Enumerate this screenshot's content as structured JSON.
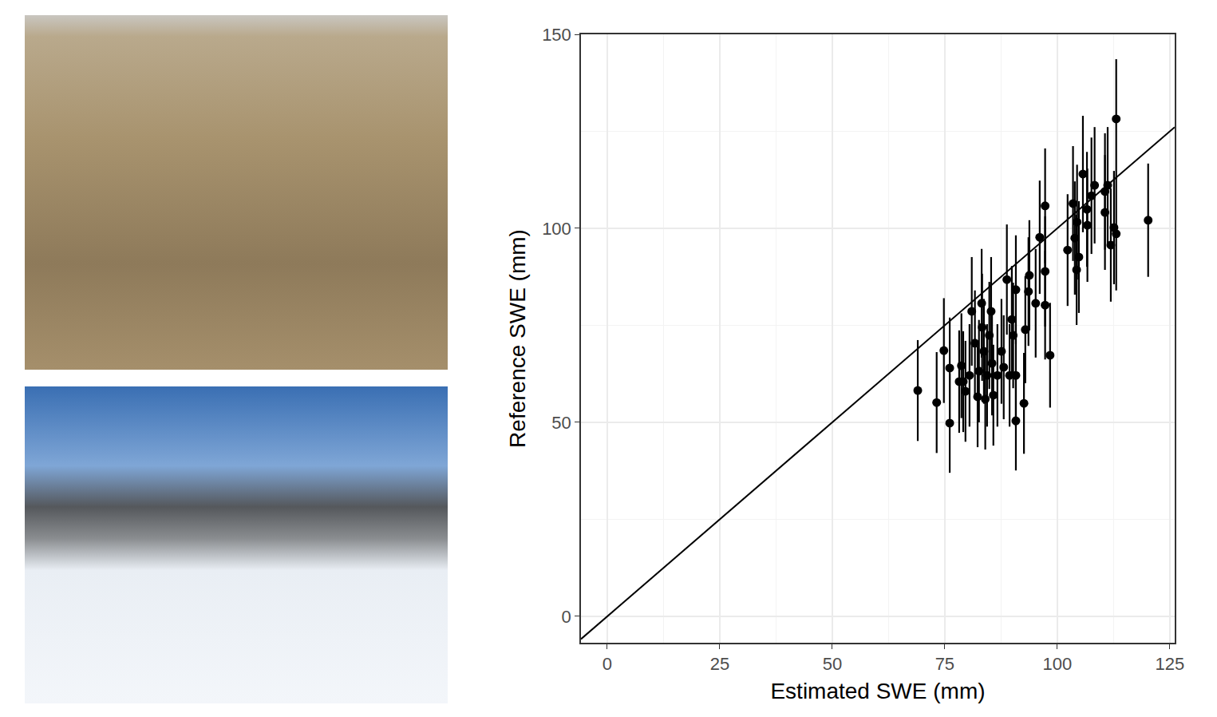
{
  "chart_data": {
    "type": "scatter",
    "x_label": "Estimated SWE (mm)",
    "y_label": "Reference SWE (mm)",
    "xlim": [
      -5.85,
      126.1
    ],
    "ylim": [
      -6.8,
      150
    ],
    "xticks": [
      0,
      25,
      50,
      75,
      100,
      125
    ],
    "yticks": [
      0,
      50,
      100,
      150
    ],
    "grid": true,
    "series": [
      {
        "type": "scatter",
        "marker": "circle",
        "color": "#000000",
        "x": [
          69.0,
          73.2,
          74.8,
          76.1,
          76.1,
          78.2,
          78.7,
          79.1,
          79.6,
          80.5,
          81.0,
          81.7,
          82.3,
          82.6,
          83.2,
          83.3,
          83.7,
          84.0,
          84.4,
          84.9,
          85.3,
          85.5,
          85.8,
          86.7,
          87.6,
          88.1,
          88.8,
          89.4,
          89.9,
          90.2,
          90.8,
          90.8,
          90.8,
          92.6,
          92.9,
          93.6,
          93.8,
          95.2,
          96.1,
          97.3,
          97.3,
          97.3,
          98.4,
          102.3,
          103.5,
          103.9,
          104.3,
          104.4,
          104.8,
          105.7,
          106.6,
          106.7,
          107.6,
          108.3,
          110.6,
          110.6,
          111.2,
          111.9,
          112.6,
          113.1,
          113.1,
          120.2
        ],
        "values": [
          58.2,
          55.1,
          68.5,
          64.0,
          49.8,
          60.5,
          64.6,
          60.5,
          58.0,
          62.1,
          78.6,
          70.4,
          56.6,
          63.2,
          80.7,
          74.5,
          68.3,
          56.0,
          62.1,
          72.4,
          78.6,
          65.2,
          57.0,
          62.1,
          68.3,
          64.2,
          86.8,
          62.1,
          76.5,
          72.4,
          62.1,
          84.2,
          50.4,
          54.9,
          73.9,
          83.7,
          87.9,
          80.7,
          97.7,
          105.8,
          88.9,
          80.2,
          67.3,
          94.4,
          106.4,
          97.5,
          89.3,
          101.6,
          92.6,
          114.0,
          104.9,
          100.8,
          108.4,
          111.1,
          109.5,
          104.1,
          111.1,
          95.7,
          100.2,
          128.2,
          98.6,
          102.1
        ],
        "error": [
          13.0,
          13.0,
          13.5,
          13.0,
          12.8,
          13.2,
          13.5,
          13.0,
          13.0,
          13.2,
          14.0,
          13.6,
          13.0,
          13.2,
          14.0,
          13.8,
          13.5,
          13.0,
          13.2,
          13.8,
          14.0,
          13.4,
          13.0,
          13.2,
          13.5,
          13.4,
          14.2,
          13.2,
          13.8,
          13.6,
          13.2,
          14.0,
          12.8,
          13.0,
          13.8,
          14.0,
          14.2,
          14.0,
          14.6,
          14.8,
          14.2,
          14.0,
          13.5,
          14.4,
          14.8,
          14.6,
          14.2,
          14.8,
          14.4,
          15.0,
          14.8,
          14.6,
          15.0,
          15.0,
          15.0,
          14.8,
          15.0,
          14.6,
          14.6,
          15.4,
          14.6,
          14.6
        ]
      },
      {
        "type": "line",
        "line_style": "solid",
        "color": "#000000",
        "x": [
          -5.85,
          126.1
        ],
        "values": [
          -5.85,
          126.1
        ]
      }
    ]
  }
}
